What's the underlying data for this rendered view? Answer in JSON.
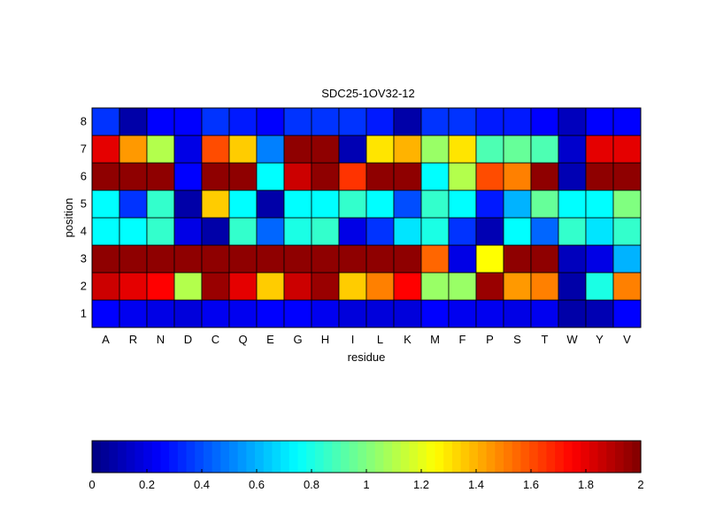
{
  "chart_data": {
    "type": "heatmap",
    "title": "SDC25-1OV32-12",
    "xlabel": "residue",
    "ylabel": "position",
    "x_categories": [
      "A",
      "R",
      "N",
      "D",
      "C",
      "Q",
      "E",
      "G",
      "H",
      "I",
      "L",
      "K",
      "M",
      "F",
      "P",
      "S",
      "T",
      "W",
      "Y",
      "V"
    ],
    "y_categories": [
      "1",
      "2",
      "3",
      "4",
      "5",
      "6",
      "7",
      "8"
    ],
    "values": [
      [
        0.25,
        0.22,
        0.2,
        0.18,
        0.22,
        0.22,
        0.25,
        0.25,
        0.22,
        0.18,
        0.18,
        0.18,
        0.25,
        0.22,
        0.22,
        0.2,
        0.22,
        0.08,
        0.1,
        0.25
      ],
      [
        1.85,
        1.8,
        1.75,
        1.1,
        1.95,
        1.8,
        1.35,
        1.85,
        1.95,
        1.35,
        1.5,
        1.75,
        1.05,
        1.05,
        1.95,
        1.45,
        1.5,
        0.08,
        0.8,
        1.5
      ],
      [
        1.97,
        1.97,
        1.97,
        1.97,
        1.97,
        1.97,
        1.97,
        1.97,
        1.97,
        1.97,
        1.97,
        1.97,
        1.55,
        0.2,
        1.25,
        1.97,
        1.97,
        0.12,
        0.2,
        0.6
      ],
      [
        0.75,
        0.75,
        0.85,
        0.2,
        0.08,
        0.85,
        0.45,
        0.8,
        0.85,
        0.2,
        0.35,
        0.7,
        0.8,
        0.35,
        0.1,
        0.75,
        0.45,
        0.85,
        0.7,
        0.85
      ],
      [
        0.75,
        0.35,
        0.85,
        0.08,
        1.35,
        0.75,
        0.08,
        0.75,
        0.75,
        0.85,
        0.75,
        0.4,
        0.85,
        0.75,
        0.3,
        0.6,
        0.95,
        0.75,
        0.75,
        1.0
      ],
      [
        1.97,
        1.97,
        1.97,
        0.25,
        1.97,
        1.97,
        0.75,
        1.85,
        1.97,
        1.65,
        1.97,
        1.97,
        0.75,
        1.1,
        1.6,
        1.5,
        1.97,
        0.1,
        1.97,
        1.97
      ],
      [
        1.8,
        1.45,
        1.1,
        0.2,
        1.6,
        1.35,
        0.5,
        1.97,
        1.97,
        0.1,
        1.3,
        1.4,
        1.05,
        1.3,
        0.9,
        0.95,
        0.9,
        0.15,
        1.8,
        1.8
      ],
      [
        0.35,
        0.08,
        0.25,
        0.25,
        0.35,
        0.3,
        0.25,
        0.35,
        0.35,
        0.35,
        0.3,
        0.08,
        0.35,
        0.35,
        0.3,
        0.3,
        0.25,
        0.12,
        0.25,
        0.25
      ]
    ],
    "colorbar": {
      "range": [
        0,
        2
      ],
      "ticks": [
        "0",
        "0.2",
        "0.4",
        "0.6",
        "0.8",
        "1",
        "1.2",
        "1.4",
        "1.6",
        "1.8",
        "2"
      ],
      "colormap": "jet"
    },
    "grid": true,
    "legend": "colorbar-bottom"
  }
}
